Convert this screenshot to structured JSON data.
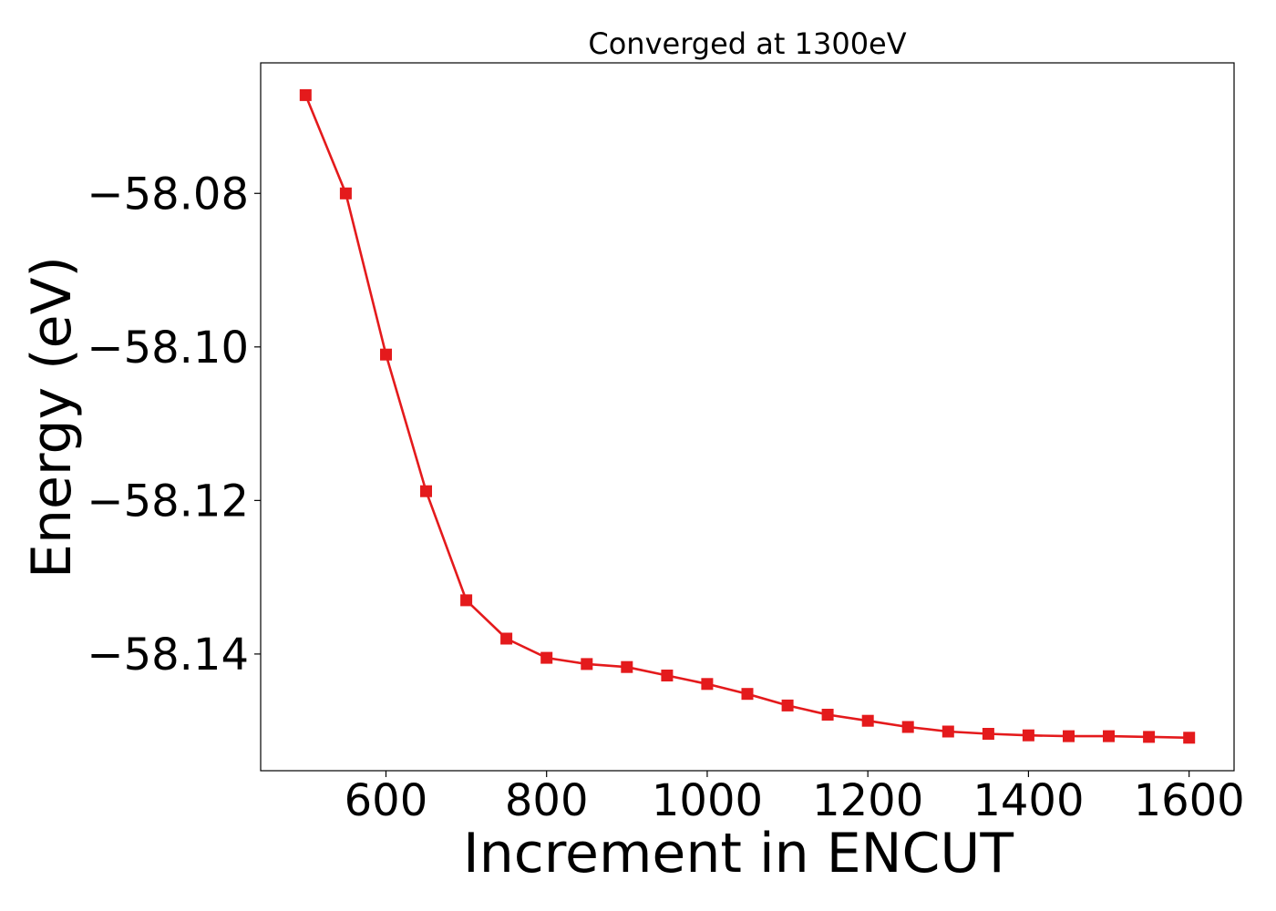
{
  "chart_data": {
    "type": "line",
    "title": "Converged at 1300eV",
    "xlabel": "Increment in ENCUT",
    "ylabel": "Energy (eV)",
    "x": [
      500,
      550,
      600,
      650,
      700,
      750,
      800,
      850,
      900,
      950,
      1000,
      1050,
      1100,
      1150,
      1200,
      1250,
      1300,
      1350,
      1400,
      1450,
      1500,
      1550,
      1600
    ],
    "series": [
      {
        "name": "",
        "color": "#e41a1c",
        "marker": "square",
        "values": [
          -58.0672,
          -58.08,
          -58.101,
          -58.1188,
          -58.133,
          -58.138,
          -58.1405,
          -58.1413,
          -58.1417,
          -58.1428,
          -58.1439,
          -58.1452,
          -58.1467,
          -58.1479,
          -58.1487,
          -58.1495,
          -58.1501,
          -58.1504,
          -58.1506,
          -58.1507,
          -58.1507,
          -58.1508,
          -58.1509
        ]
      }
    ],
    "xticks": [
      600,
      800,
      1000,
      1200,
      1400,
      1600
    ],
    "xtick_labels": [
      "600",
      "800",
      "1000",
      "1200",
      "1400",
      "1600"
    ],
    "yticks": [
      -58.08,
      -58.1,
      -58.12,
      -58.14
    ],
    "ytick_labels": [
      "−58.08",
      "−58.10",
      "−58.12",
      "−58.14"
    ],
    "xlim": [
      444,
      1656
    ],
    "ylim": [
      -58.1552,
      -58.063
    ],
    "grid": false,
    "legend": "none"
  }
}
